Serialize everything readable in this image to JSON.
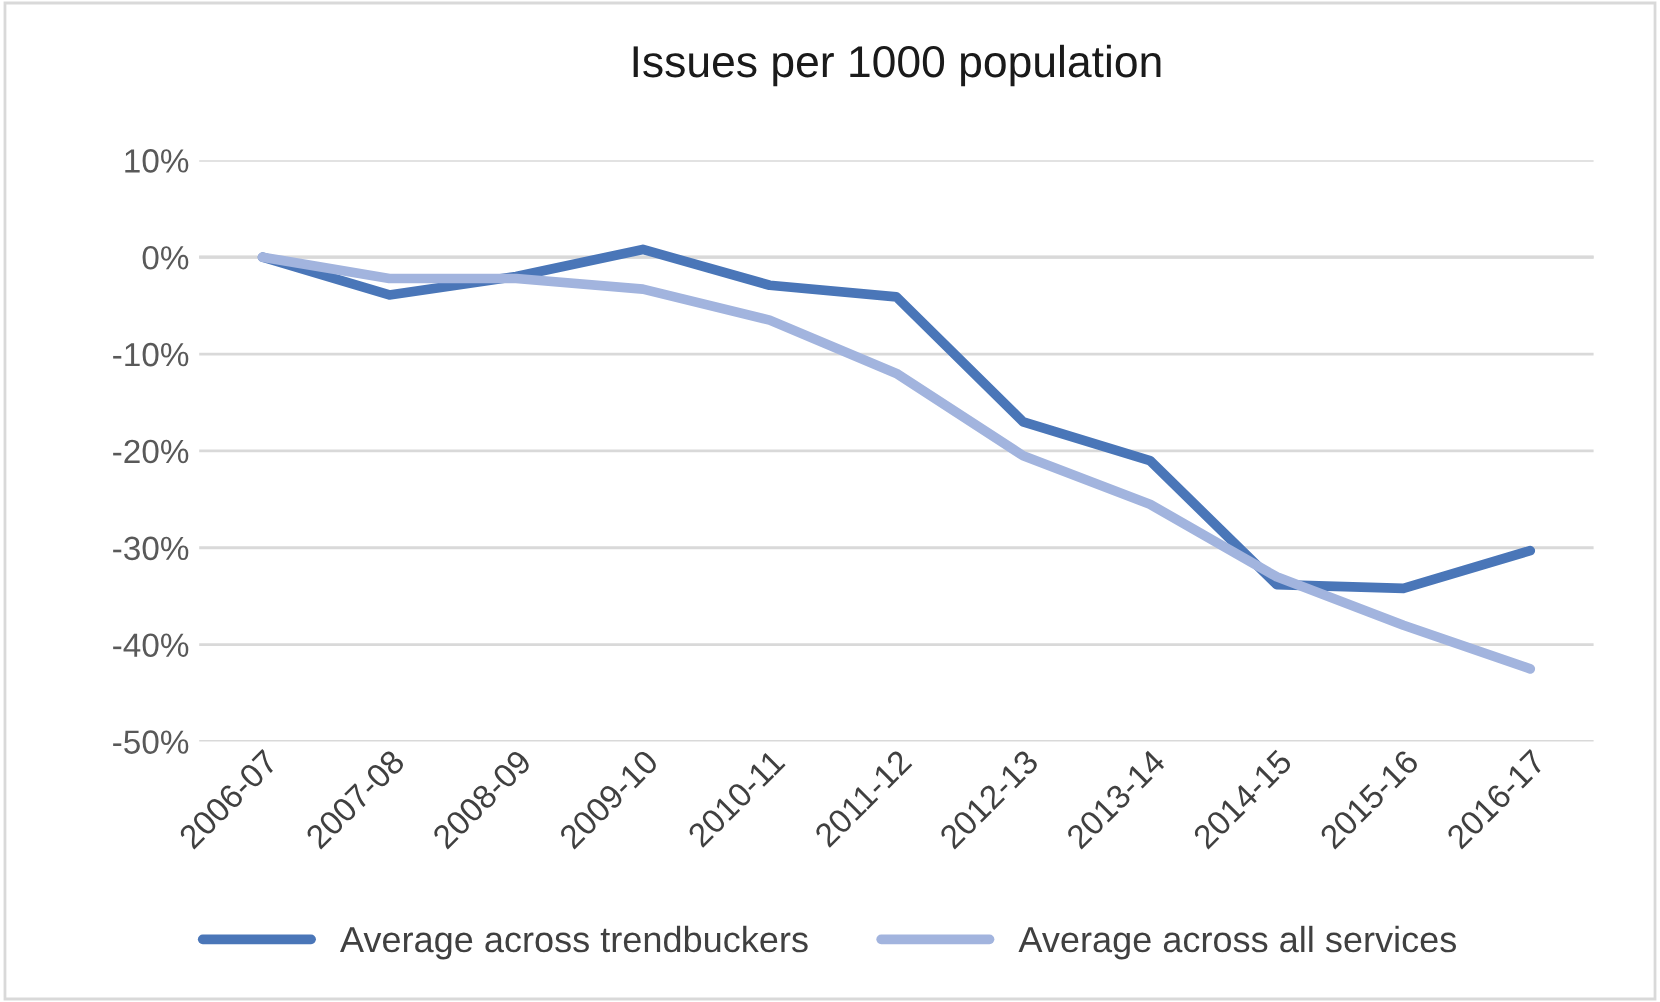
{
  "chart_data": {
    "type": "line",
    "title": "Issues per 1000 population",
    "categories": [
      "2006-07",
      "2007-08",
      "2008-09",
      "2009-10",
      "2010-11",
      "2011-12",
      "2012-13",
      "2013-14",
      "2014-15",
      "2015-16",
      "2016-17"
    ],
    "series": [
      {
        "name": "Average across trendbuckers",
        "color": "#4a76b8",
        "values": [
          0,
          -3.9,
          -2.0,
          0.8,
          -2.9,
          -4.1,
          -17.0,
          -21.0,
          -33.8,
          -34.2,
          -30.3
        ]
      },
      {
        "name": "Average across all services",
        "color": "#a2b4de",
        "values": [
          0,
          -2.2,
          -2.2,
          -3.3,
          -6.5,
          -12.0,
          -20.5,
          -25.5,
          -33.0,
          -38.0,
          -42.5
        ]
      }
    ],
    "ylim": [
      -50,
      10
    ],
    "yticks": [
      {
        "value": 10,
        "label": "10%"
      },
      {
        "value": 0,
        "label": "0%"
      },
      {
        "value": -10,
        "label": "-10%"
      },
      {
        "value": -20,
        "label": "-20%"
      },
      {
        "value": -30,
        "label": "-30%"
      },
      {
        "value": -40,
        "label": "-40%"
      },
      {
        "value": -50,
        "label": "-50%"
      }
    ],
    "grid": "y",
    "legend": "bottom",
    "marker": "none",
    "line_style": "solid"
  }
}
